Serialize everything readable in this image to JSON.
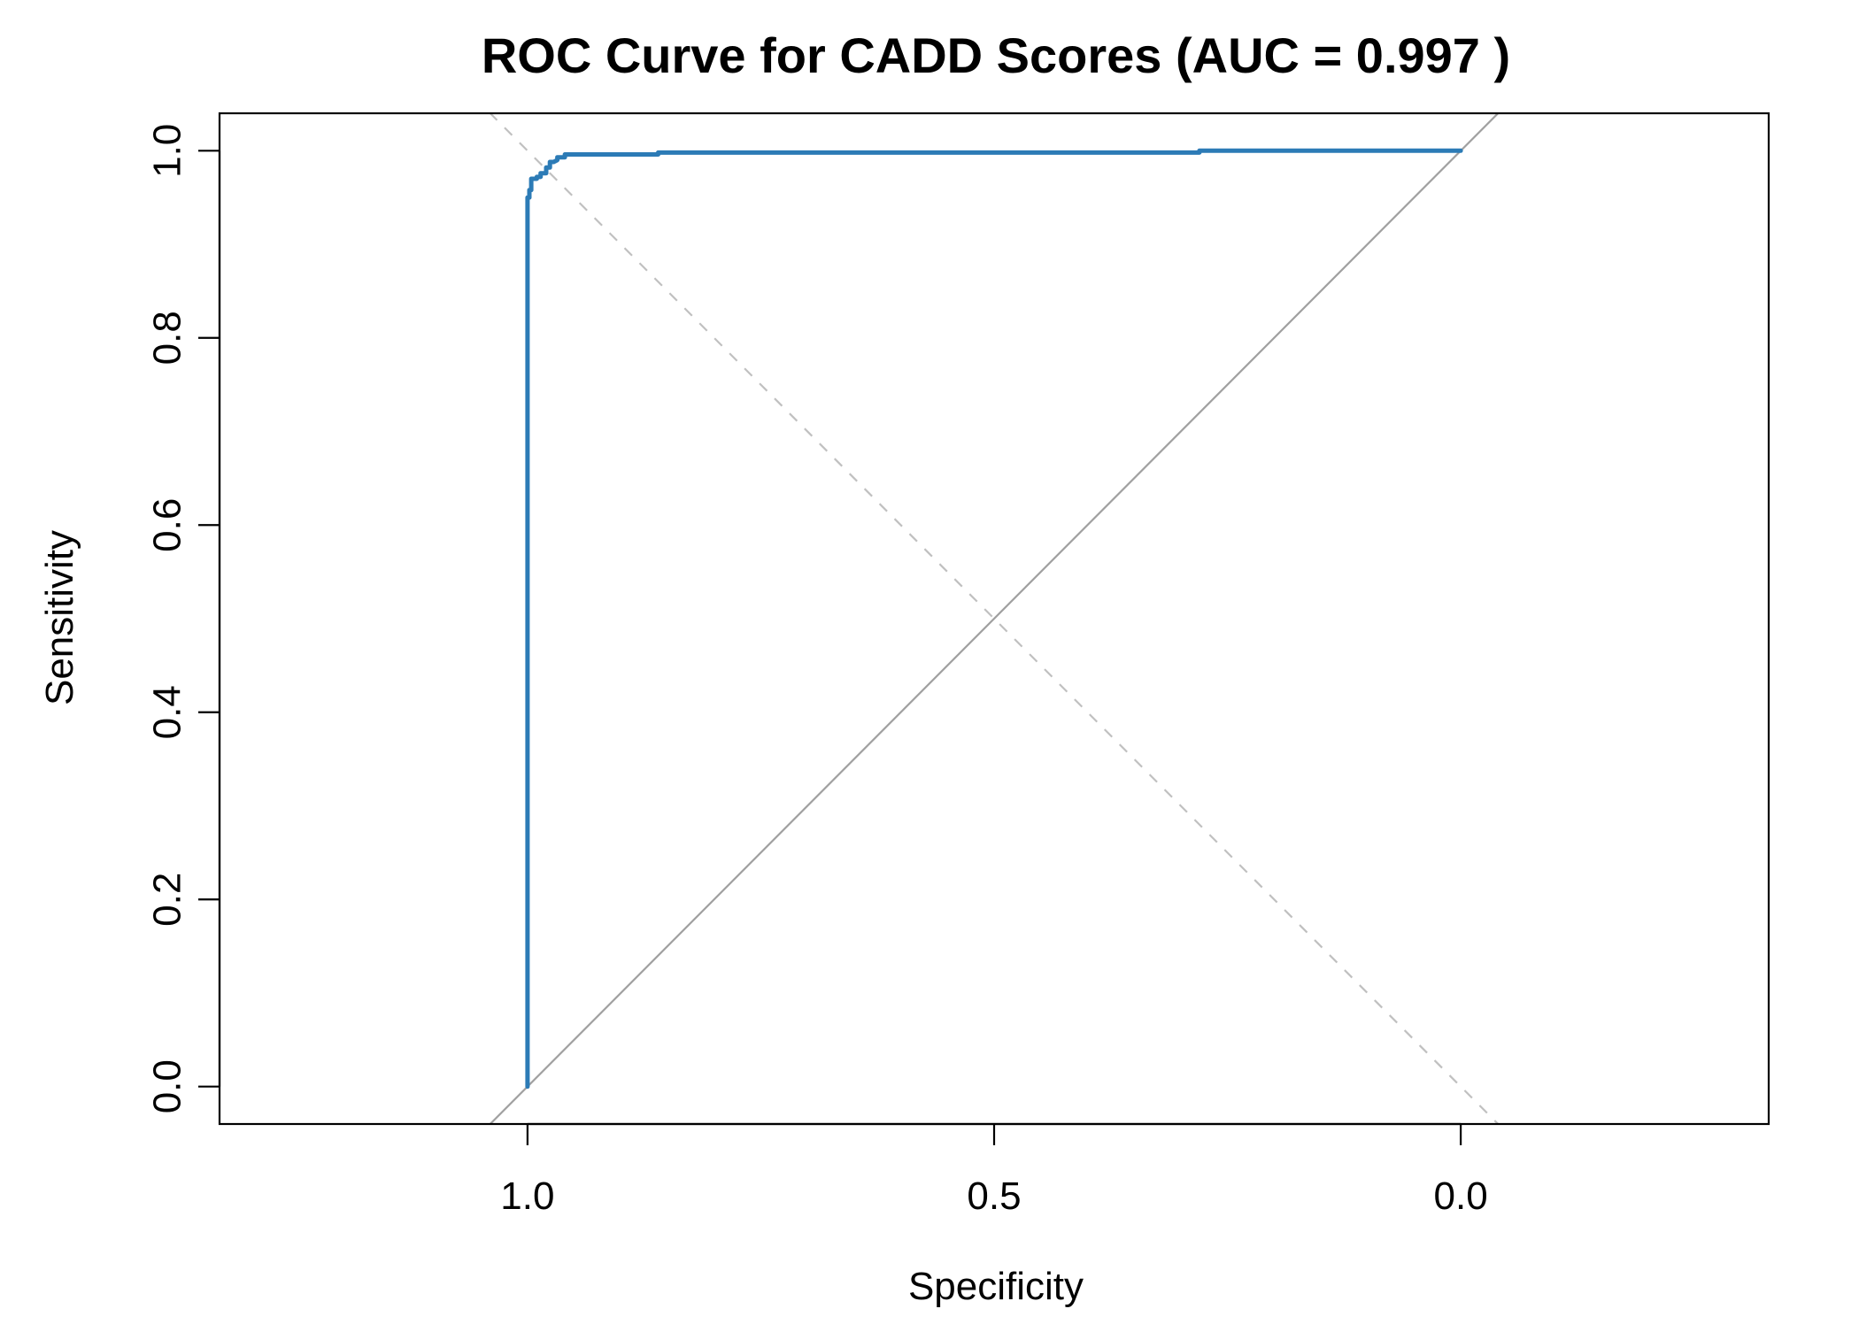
{
  "chart_data": {
    "type": "line",
    "title": "ROC Curve for CADD Scores (AUC = 0.997 )",
    "xlabel": "Specificity",
    "ylabel": "Sensitivity",
    "x_reversed": true,
    "xlim": [
      1.33,
      -0.33
    ],
    "ylim": [
      -0.04,
      1.04
    ],
    "x_ticks": [
      1.0,
      0.5,
      0.0
    ],
    "x_tick_labels": [
      "1.0",
      "0.5",
      "0.0"
    ],
    "y_ticks": [
      0.0,
      0.2,
      0.4,
      0.6,
      0.8,
      1.0
    ],
    "y_tick_labels": [
      "0.0",
      "0.2",
      "0.4",
      "0.6",
      "0.8",
      "1.0"
    ],
    "grid": false,
    "series": [
      {
        "color": "#2c7bb6",
        "x": [
          1.0,
          1.0,
          1.0,
          0.998,
          0.998,
          0.996,
          0.996,
          0.99,
          0.99,
          0.986,
          0.986,
          0.98,
          0.98,
          0.976,
          0.976,
          0.972,
          0.968,
          0.968,
          0.96,
          0.96,
          0.86,
          0.86,
          0.28,
          0.28,
          0.0
        ],
        "y": [
          0.0,
          0.944,
          0.95,
          0.95,
          0.958,
          0.958,
          0.97,
          0.97,
          0.972,
          0.972,
          0.976,
          0.976,
          0.982,
          0.982,
          0.988,
          0.988,
          0.99,
          0.993,
          0.993,
          0.996,
          0.996,
          0.998,
          0.998,
          1.0,
          1.0
        ]
      }
    ],
    "reference_lines": [
      {
        "kind": "solid",
        "color": "#a0a0a0",
        "from": [
          1.0,
          0.0
        ],
        "to": [
          0.0,
          1.0
        ]
      },
      {
        "kind": "dashed",
        "color": "#c0c0c0",
        "from": [
          1.0,
          1.0
        ],
        "to": [
          0.0,
          0.0
        ]
      }
    ]
  }
}
